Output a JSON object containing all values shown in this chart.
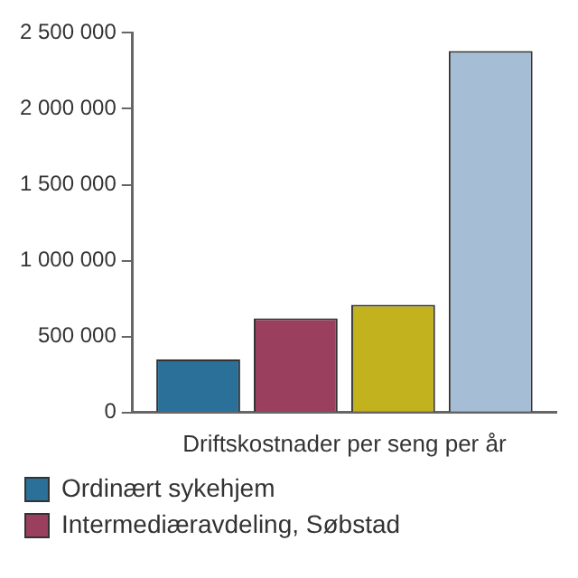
{
  "chart_data": {
    "type": "bar",
    "xlabel": "Driftskostnader per seng per år",
    "categories": [
      null
    ],
    "series": [
      {
        "name": "Ordinært sykehjem",
        "color": "#2a7099",
        "values": [
          350000
        ]
      },
      {
        "name": "Intermediæravdeling, Søbstad",
        "color": "#9b3f5e",
        "values": [
          620000
        ]
      },
      {
        "color": "#c2b21e",
        "values": [
          710000
        ]
      },
      {
        "color": "#a6bdd6",
        "values": [
          2380000
        ]
      }
    ],
    "ylim": [
      0,
      2500000
    ],
    "yticks": [
      0,
      500000,
      1000000,
      1500000,
      2000000,
      2500000
    ],
    "grid": false,
    "legend": "bottom",
    "tick_labels": "y"
  }
}
